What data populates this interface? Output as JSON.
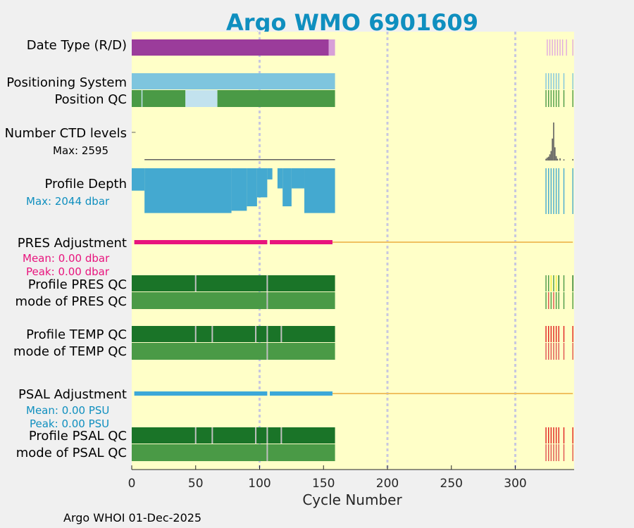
{
  "chart_data": {
    "type": "status_timeline",
    "title": "Argo WMO 6901609",
    "xlabel": "Cycle Number",
    "xlim": [
      0,
      346
    ],
    "xticks": [
      0,
      50,
      100,
      150,
      200,
      250,
      300
    ],
    "footer": "Argo WHOI 01-Dec-2025",
    "vlines": [
      100,
      200,
      300
    ],
    "rows": {
      "date_type": {
        "label": "Date Type (R/D)",
        "segments": [
          [
            0,
            154,
            "D"
          ],
          [
            154,
            159,
            "R"
          ]
        ],
        "sparse_cycles": [
          325,
          327,
          329,
          331,
          333,
          335,
          337,
          340,
          345
        ]
      },
      "positioning_system": {
        "label": "Positioning System",
        "segments": [
          [
            0,
            159,
            "GPS"
          ]
        ],
        "sparse_cycles": [
          324,
          326,
          328,
          330,
          332,
          334,
          338,
          345
        ]
      },
      "position_qc": {
        "label": "Position QC",
        "segments": [
          [
            0,
            42,
            "1"
          ],
          [
            42,
            67,
            "missing"
          ],
          [
            67,
            159,
            "1"
          ]
        ],
        "gaps": [
          8
        ],
        "sparse_cycles": [
          324,
          326,
          328,
          330,
          332,
          334,
          338,
          345
        ]
      },
      "ctd_levels": {
        "label": "Number CTD levels",
        "max_label": "Max: 2595",
        "max": 2595,
        "base_level": 60,
        "sparse_values": [
          [
            324,
            120
          ],
          [
            325,
            200
          ],
          [
            326,
            260
          ],
          [
            327,
            420
          ],
          [
            328,
            650
          ],
          [
            329,
            1500
          ],
          [
            330,
            2595
          ],
          [
            331,
            900
          ],
          [
            332,
            300
          ],
          [
            333,
            120
          ],
          [
            335,
            150
          ],
          [
            338,
            80
          ],
          [
            345,
            100
          ]
        ]
      },
      "profile_depth": {
        "label": "Profile Depth",
        "max_label": "Max: 2044 dbar",
        "max_dbar": 2044,
        "depth_segments": [
          [
            0,
            10,
            1000
          ],
          [
            10,
            78,
            2000
          ],
          [
            78,
            90,
            1900
          ],
          [
            90,
            98,
            1700
          ],
          [
            98,
            106,
            1300
          ],
          [
            106,
            110,
            500
          ],
          [
            114,
            118,
            900
          ],
          [
            118,
            125,
            1700
          ],
          [
            125,
            135,
            900
          ],
          [
            135,
            159,
            2000
          ]
        ],
        "sparse_cycles": [
          324,
          326,
          328,
          330,
          332,
          334,
          338,
          345
        ]
      },
      "pres_adjustment": {
        "label": "PRES Adjustment",
        "mean_label": "Mean: 0.00 dbar",
        "peak_label": "Peak: 0.00 dbar",
        "segments": [
          [
            2,
            106
          ],
          [
            108,
            157
          ]
        ],
        "baseline": [
          157,
          345
        ]
      },
      "profile_pres_qc": {
        "label": "Profile PRES QC",
        "segments": [
          [
            0,
            159,
            "A"
          ]
        ],
        "gaps": [
          50,
          106
        ],
        "sparse": [
          [
            324,
            "B"
          ],
          [
            326,
            "B"
          ],
          [
            328,
            "E"
          ],
          [
            330,
            "B"
          ],
          [
            332,
            "E"
          ],
          [
            334,
            "A"
          ],
          [
            338,
            "B"
          ],
          [
            345,
            "A"
          ]
        ]
      },
      "mode_pres_qc": {
        "label": "mode of PRES QC",
        "segments": [
          [
            0,
            159,
            "1"
          ]
        ],
        "gaps": [
          106
        ],
        "sparse": [
          [
            324,
            "1"
          ],
          [
            326,
            "4"
          ],
          [
            328,
            "1"
          ],
          [
            330,
            "4"
          ],
          [
            332,
            "1"
          ],
          [
            334,
            "1"
          ],
          [
            338,
            "1"
          ],
          [
            345,
            "1"
          ]
        ]
      },
      "profile_temp_qc": {
        "label": "Profile TEMP QC",
        "segments": [
          [
            0,
            159,
            "A"
          ]
        ],
        "gaps": [
          50,
          63,
          97,
          106,
          117
        ],
        "sparse": [
          [
            324,
            "F"
          ],
          [
            326,
            "F"
          ],
          [
            328,
            "F"
          ],
          [
            330,
            "F"
          ],
          [
            332,
            "F"
          ],
          [
            334,
            "F"
          ],
          [
            338,
            "F"
          ],
          [
            345,
            "F"
          ]
        ]
      },
      "mode_temp_qc": {
        "label": "mode of TEMP QC",
        "segments": [
          [
            0,
            159,
            "1"
          ]
        ],
        "gaps": [
          106
        ],
        "sparse": [
          [
            324,
            "4"
          ],
          [
            326,
            "4"
          ],
          [
            328,
            "4"
          ],
          [
            330,
            "4"
          ],
          [
            332,
            "4"
          ],
          [
            334,
            "4"
          ],
          [
            338,
            "4"
          ],
          [
            345,
            "4"
          ]
        ]
      },
      "psal_adjustment": {
        "label": "PSAL Adjustment",
        "mean_label": "Mean: 0.00 PSU",
        "peak_label": "Peak: 0.00 PSU",
        "segments": [
          [
            2,
            106
          ],
          [
            108,
            157
          ]
        ],
        "baseline": [
          157,
          345
        ]
      },
      "profile_psal_qc": {
        "label": "Profile PSAL QC",
        "segments": [
          [
            0,
            159,
            "A"
          ]
        ],
        "gaps": [
          50,
          63,
          97,
          106,
          117
        ],
        "sparse": [
          [
            324,
            "F"
          ],
          [
            326,
            "F"
          ],
          [
            328,
            "F"
          ],
          [
            330,
            "F"
          ],
          [
            332,
            "F"
          ],
          [
            334,
            "F"
          ],
          [
            338,
            "F"
          ],
          [
            345,
            "F"
          ]
        ]
      },
      "mode_psal_qc": {
        "label": "mode of PSAL QC",
        "segments": [
          [
            0,
            159,
            "1"
          ]
        ],
        "gaps": [
          106
        ],
        "sparse": [
          [
            324,
            "4"
          ],
          [
            326,
            "4"
          ],
          [
            328,
            "4"
          ],
          [
            330,
            "4"
          ],
          [
            332,
            "4"
          ],
          [
            334,
            "4"
          ],
          [
            338,
            "4"
          ],
          [
            345,
            "4"
          ]
        ]
      }
    }
  },
  "colors": {
    "title": "#0f8fbf",
    "plot_background": "#ffffc8",
    "vline": "#c8c8e0",
    "date_d": "#9b3c9b",
    "date_r": "#d8a0d8",
    "date_sparse": "#e0a8e0",
    "gps": "#7ec5de",
    "qc1": "#4a9a46",
    "qc_missing": "#c2e2ee",
    "qc_A": "#1a7428",
    "qc_B": "#4a9a46",
    "qc_E": "#f5ee3c",
    "qc_F": "#e01e1e",
    "qc_4": "#e05050",
    "qc_gap": "#c0c0c0",
    "ctd_line": "#606060",
    "depth": "#44a9d0",
    "pres_adj": "#e8147d",
    "psal_adj": "#3ca8d8",
    "adj_baseline": "#f0c060",
    "text": "#000000"
  }
}
